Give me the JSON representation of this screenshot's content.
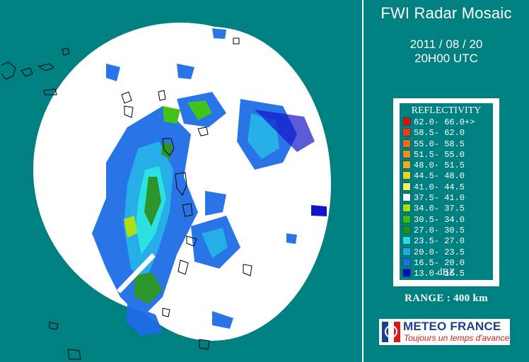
{
  "header": {
    "title": "FWI Radar Mosaic",
    "date": "2011 / 08 / 20",
    "time": "20H00 UTC"
  },
  "legend": {
    "title": "REFLECTIVITY",
    "unit": "dBZ",
    "classes": [
      {
        "label": "62.0- 66.0+>",
        "color": "#e01010"
      },
      {
        "label": "58.5- 62.0",
        "color": "#e8401a"
      },
      {
        "label": "55.0- 58.5",
        "color": "#ea6a1e"
      },
      {
        "label": "51.5- 55.0",
        "color": "#f08c1e"
      },
      {
        "label": "48.0- 51.5",
        "color": "#f4aa20"
      },
      {
        "label": "44.5- 48.0",
        "color": "#f4d21a"
      },
      {
        "label": "41.0- 44.5",
        "color": "#f0f06a"
      },
      {
        "label": "37.5- 41.0",
        "color": "#fafafa"
      },
      {
        "label": "34.0- 37.5",
        "color": "#aadf0a"
      },
      {
        "label": "30.5- 34.0",
        "color": "#38c00e"
      },
      {
        "label": "27.0- 30.5",
        "color": "#209020"
      },
      {
        "label": "23.5- 27.0",
        "color": "#20e0e0"
      },
      {
        "label": "20.0- 23.5",
        "color": "#1aaae6"
      },
      {
        "label": "16.5- 20.0",
        "color": "#1e6ee6"
      },
      {
        "label": "13.0- 16.5",
        "color": "#0808c8"
      }
    ]
  },
  "range_label": "RANGE : 400 km",
  "logo": {
    "name": "METEO FRANCE",
    "tagline": "Toujours un temps d'avance"
  },
  "colors": {
    "background": "#008080",
    "coverage": "#ffffff",
    "coastline": "#000000"
  }
}
